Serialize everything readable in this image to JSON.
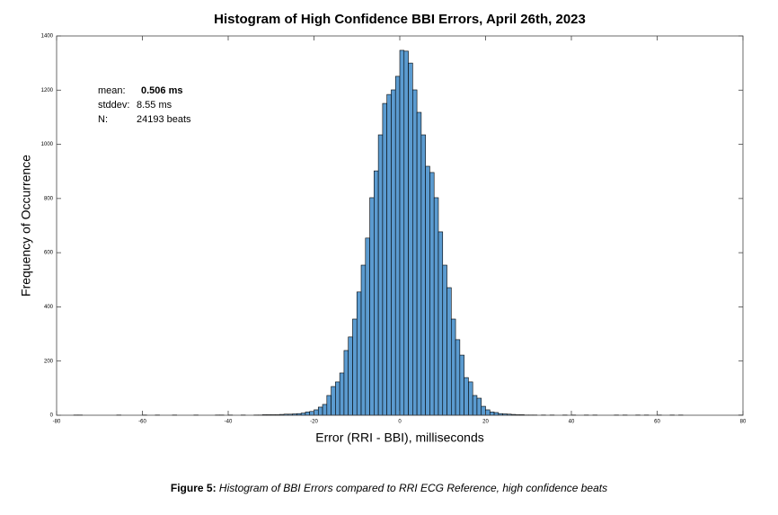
{
  "chart_data": {
    "type": "histogram",
    "title": "Histogram of High Confidence BBI Errors, April 26th, 2023",
    "x_label": "Error (RRI - BBI), milliseconds",
    "y_label": "Frequency of Occurrence",
    "color": "#5b9bd0",
    "edge_color": "#000000",
    "bins": [
      -80,
      -79,
      -78,
      -77,
      -76,
      -75,
      -74,
      -73,
      -72,
      -71,
      -70,
      -69,
      -68,
      -67,
      -66,
      -65,
      -64,
      -63,
      -62,
      -61,
      -60,
      -59,
      -58,
      -57,
      -56,
      -55,
      -54,
      -53,
      -52,
      -51,
      -50,
      -49,
      -48,
      -47,
      -46,
      -45,
      -44,
      -43,
      -42,
      -41,
      -40,
      -39,
      -38,
      -37,
      -36,
      -35,
      -34,
      -33,
      -32,
      -31,
      -30,
      -29,
      -28,
      -27,
      -26,
      -25,
      -24,
      -23,
      -22,
      -21,
      -20,
      -19,
      -18,
      -17,
      -16,
      -15,
      -14,
      -13,
      -12,
      -11,
      -10,
      -9,
      -8,
      -7,
      -6,
      -5,
      -4,
      -3,
      -2,
      -1,
      0,
      1,
      2,
      3,
      4,
      5,
      6,
      7,
      8,
      9,
      10,
      11,
      12,
      13,
      14,
      15,
      16,
      17,
      18,
      19,
      20,
      21,
      22,
      23,
      24,
      25,
      26,
      27,
      28,
      29,
      30,
      31,
      32,
      33,
      34,
      35,
      36,
      37,
      38,
      39,
      40,
      41,
      42,
      43,
      44,
      45,
      46,
      47,
      48,
      49,
      50,
      51,
      52,
      53,
      54,
      55,
      56,
      57,
      58,
      59,
      60,
      61,
      62,
      63,
      64,
      65,
      66,
      67,
      68,
      69,
      70,
      71,
      72,
      73,
      74,
      75,
      76,
      77,
      78,
      79,
      80
    ],
    "values": [
      0,
      0,
      0,
      0,
      1,
      1,
      0,
      0,
      0,
      0,
      0,
      0,
      0,
      0,
      1,
      0,
      0,
      0,
      0,
      0,
      1,
      0,
      0,
      1,
      0,
      0,
      0,
      1,
      0,
      0,
      0,
      0,
      1,
      0,
      0,
      0,
      0,
      1,
      1,
      0,
      1,
      0,
      0,
      1,
      0,
      0,
      1,
      1,
      2,
      2,
      2,
      2,
      3,
      4,
      4,
      5,
      6,
      8,
      12,
      14,
      20,
      30,
      40,
      73,
      106,
      123,
      156,
      239,
      289,
      355,
      455,
      554,
      654,
      803,
      902,
      1035,
      1151,
      1184,
      1201,
      1251,
      1347,
      1344,
      1300,
      1201,
      1118,
      1035,
      919,
      896,
      803,
      677,
      554,
      471,
      355,
      279,
      222,
      139,
      123,
      73,
      63,
      33,
      20,
      12,
      10,
      6,
      5,
      4,
      3,
      2,
      2,
      1,
      1,
      1,
      0,
      1,
      0,
      1,
      0,
      0,
      1,
      0,
      1,
      0,
      0,
      1,
      0,
      1,
      0,
      0,
      0,
      0,
      1,
      0,
      1,
      0,
      0,
      1,
      0,
      1,
      0,
      0,
      1,
      0,
      0,
      1,
      0,
      1,
      0,
      0,
      0,
      0,
      0,
      0,
      0,
      0,
      0,
      0,
      0,
      0,
      0,
      1
    ],
    "xlim": [
      -80,
      80
    ],
    "ylim": [
      0,
      1400
    ],
    "xticks": [
      -80,
      -60,
      -40,
      -20,
      0,
      20,
      40,
      60,
      80
    ],
    "yticks": [
      0,
      200,
      400,
      600,
      800,
      1000,
      1200,
      1400
    ],
    "stats": [
      {
        "label": "mean:",
        "value": "0.506 ms"
      },
      {
        "label": "stddev:",
        "value": "8.55 ms"
      },
      {
        "label": "N:",
        "value": "24193 beats"
      }
    ]
  },
  "caption": {
    "label": "Figure 5:",
    "text": "Histogram of BBI Errors compared to RRI ECG Reference, high confidence beats"
  }
}
